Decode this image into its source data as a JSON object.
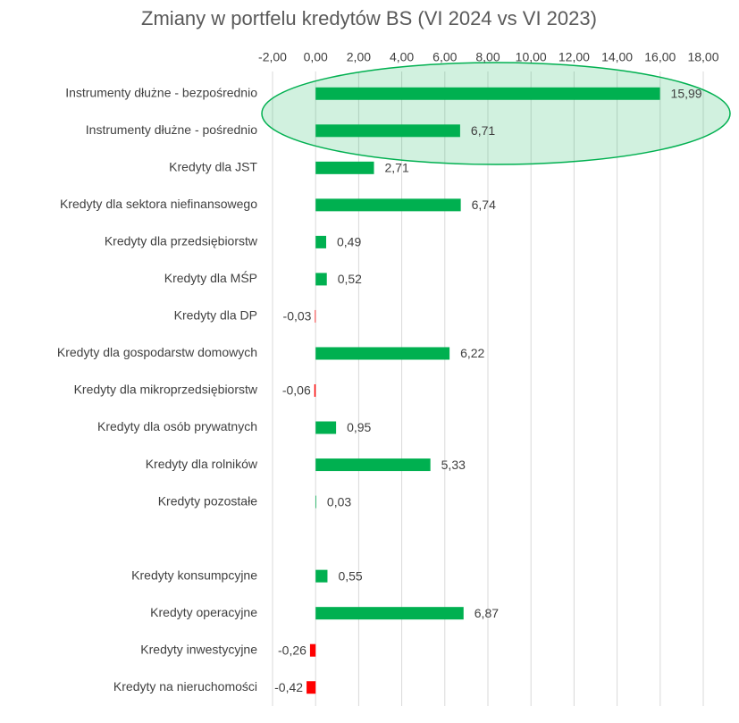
{
  "chart_data": {
    "type": "hbar",
    "title": "Zmiany w portfelu kredytów BS (VI 2024 vs VI 2023)",
    "categories": [
      "Instrumenty dłużne - bezpośrednio",
      "Instrumenty dłużne - pośrednio",
      "Kredyty dla JST",
      "Kredyty dla sektora niefinansowego",
      "Kredyty dla przedsiębiorstw",
      "Kredyty dla MŚP",
      "Kredyty dla DP",
      "Kredyty dla gospodarstw domowych",
      "Kredyty dla mikroprzedsiębiorstw",
      "Kredyty dla osób prywatnych",
      "Kredyty dla rolników",
      "Kredyty pozostałe",
      null,
      "Kredyty konsumpcyjne",
      "Kredyty operacyjne",
      "Kredyty inwestycyjne",
      "Kredyty na nieruchomości"
    ],
    "values": [
      15.99,
      6.71,
      2.71,
      6.74,
      0.49,
      0.52,
      -0.03,
      6.22,
      -0.06,
      0.95,
      5.33,
      0.03,
      null,
      0.55,
      6.87,
      -0.26,
      -0.42
    ],
    "value_labels": [
      "15,99",
      "6,71",
      "2,71",
      "6,74",
      "0,49",
      "0,52",
      "-0,03",
      "6,22",
      "-0,06",
      "0,95",
      "5,33",
      "0,03",
      null,
      "0,55",
      "6,87",
      "-0,26",
      "-0,42"
    ],
    "positive_color": "#00b050",
    "negative_color": "#ff0000",
    "xlim": [
      -2,
      18
    ],
    "xticks": [
      {
        "value": -2,
        "label": "-2,00"
      },
      {
        "value": 0,
        "label": "0,00"
      },
      {
        "value": 2,
        "label": "2,00"
      },
      {
        "value": 4,
        "label": "4,00"
      },
      {
        "value": 6,
        "label": "6,00"
      },
      {
        "value": 8,
        "label": "8,00"
      },
      {
        "value": 10,
        "label": "10,00"
      },
      {
        "value": 12,
        "label": "12,00"
      },
      {
        "value": 14,
        "label": "14,00"
      },
      {
        "value": 16,
        "label": "16,00"
      },
      {
        "value": 18,
        "label": "18,00"
      }
    ],
    "grid": true
  }
}
